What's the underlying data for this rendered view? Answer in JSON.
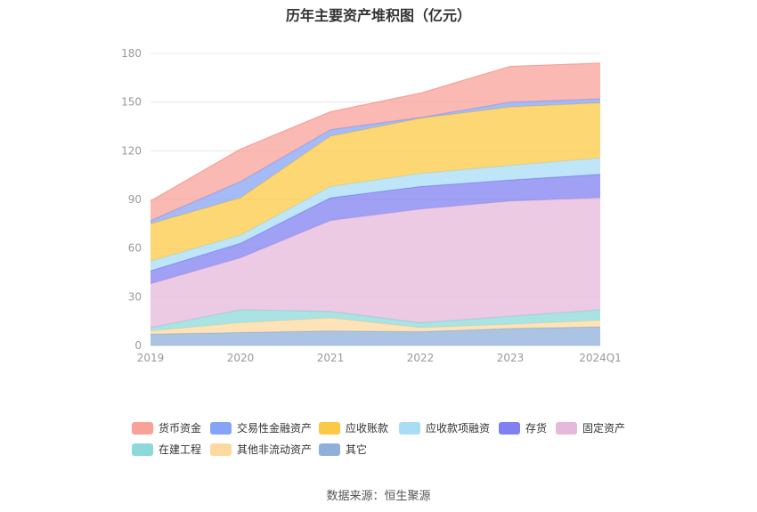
{
  "chart_data": {
    "type": "area",
    "stacked": true,
    "title": "历年主要资产堆积图（亿元）",
    "categories": [
      "2019",
      "2020",
      "2021",
      "2022",
      "2023",
      "2024Q1"
    ],
    "ylim": [
      0,
      180
    ],
    "yticks": [
      0,
      30,
      60,
      90,
      120,
      150,
      180
    ],
    "grid": true,
    "legend_position": "bottom",
    "series": [
      {
        "name": "其它",
        "color": "#8fb0d9",
        "values": [
          7,
          8,
          9,
          8.5,
          10.5,
          11.5
        ]
      },
      {
        "name": "其他非流动资产",
        "color": "#fdd9a0",
        "values": [
          2,
          6,
          8,
          2.5,
          2.5,
          4
        ]
      },
      {
        "name": "在建工程",
        "color": "#8dd9d9",
        "values": [
          2,
          8,
          4,
          3,
          5,
          6.5
        ]
      },
      {
        "name": "固定资产",
        "color": "#e6b8d9",
        "values": [
          27,
          32,
          56,
          70,
          71,
          69
        ]
      },
      {
        "name": "存货",
        "color": "#8080f0",
        "values": [
          8,
          9,
          14,
          14,
          13,
          14.5
        ]
      },
      {
        "name": "应收款项融资",
        "color": "#a8ddf5",
        "values": [
          6,
          5,
          7,
          8,
          9,
          10
        ]
      },
      {
        "name": "应收账款",
        "color": "#fcc946",
        "values": [
          23,
          23,
          31,
          34,
          36,
          34
        ]
      },
      {
        "name": "交易性金融资产",
        "color": "#85a4f5",
        "values": [
          2,
          10,
          4,
          0.5,
          3,
          2.5
        ]
      },
      {
        "name": "货币资金",
        "color": "#f8a199",
        "values": [
          12,
          20,
          11,
          15,
          22,
          22
        ]
      }
    ]
  },
  "legend": {
    "items": [
      {
        "label": "货币资金",
        "color": "#f8a199"
      },
      {
        "label": "交易性金融资产",
        "color": "#85a4f5"
      },
      {
        "label": "应收账款",
        "color": "#fcc946"
      },
      {
        "label": "应收款项融资",
        "color": "#a8ddf5"
      },
      {
        "label": "存货",
        "color": "#8080f0"
      },
      {
        "label": "固定资产",
        "color": "#e6b8d9"
      },
      {
        "label": "在建工程",
        "color": "#8dd9d9"
      },
      {
        "label": "其他非流动资产",
        "color": "#fdd9a0"
      },
      {
        "label": "其它",
        "color": "#8fb0d9"
      }
    ]
  },
  "footer": {
    "source": "数据来源：恒生聚源"
  }
}
